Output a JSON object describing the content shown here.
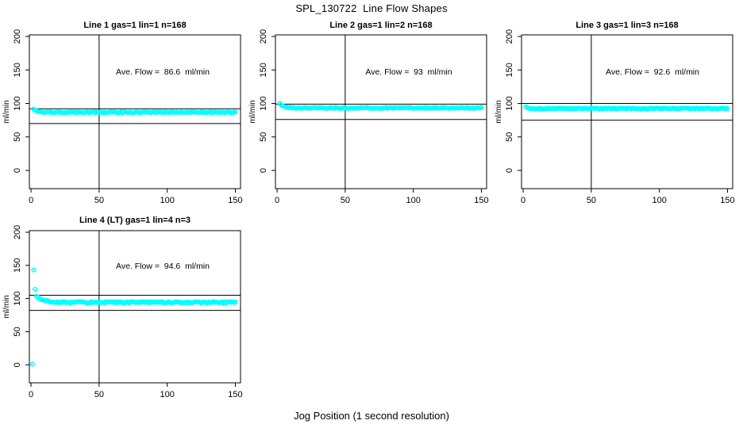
{
  "figure": {
    "title": "SPL_130722  Line Flow Shapes",
    "xlabel": "Jog Position (1 second resolution)",
    "background_color": "#ffffff",
    "axis_color": "#000000",
    "point_color": "#00ffff"
  },
  "chart_data": [
    {
      "type": "scatter",
      "title": "Line 1 gas=1 lin=1 n=168",
      "annotation": "Ave. Flow =  86.6  ml/min",
      "ave_flow_ml_min": 86.6,
      "ylabel": "ml/min",
      "xticks": [
        0,
        50,
        100,
        150
      ],
      "yticks": [
        0,
        50,
        100,
        150,
        200
      ],
      "xlim": [
        -1.2,
        153.8
      ],
      "ylim": [
        -27.2,
        202.4
      ],
      "grid": false,
      "vline_x": 50,
      "hlines": [
        92,
        70
      ],
      "series": {
        "name": "flow",
        "start_x": 2,
        "end_x": 150,
        "start_value": 91.5,
        "settle_value": 86.8,
        "decay_tau": 3,
        "noise": 0.7,
        "outliers": []
      }
    },
    {
      "type": "scatter",
      "title": "Line 2 gas=1 lin=2 n=168",
      "annotation": "Ave. Flow =  93  ml/min",
      "ave_flow_ml_min": 93,
      "ylabel": "ml/min",
      "xticks": [
        0,
        50,
        100,
        150
      ],
      "yticks": [
        0,
        50,
        100,
        150,
        200
      ],
      "xlim": [
        -1.2,
        153.8
      ],
      "ylim": [
        -27.2,
        202.4
      ],
      "grid": false,
      "vline_x": 50,
      "hlines": [
        99,
        76
      ],
      "series": {
        "name": "flow",
        "start_x": 2,
        "end_x": 150,
        "start_value": 100,
        "settle_value": 93.2,
        "decay_tau": 2.5,
        "noise": 0.7,
        "outliers": []
      }
    },
    {
      "type": "scatter",
      "title": "Line 3 gas=1 lin=3 n=168",
      "annotation": "Ave. Flow =  92.6  ml/min",
      "ave_flow_ml_min": 92.6,
      "ylabel": "ml/min",
      "xticks": [
        0,
        50,
        100,
        150
      ],
      "yticks": [
        0,
        50,
        100,
        150,
        200
      ],
      "xlim": [
        -1.2,
        153.8
      ],
      "ylim": [
        -27.2,
        202.4
      ],
      "grid": false,
      "vline_x": 50,
      "hlines": [
        100,
        75
      ],
      "series": {
        "name": "flow",
        "start_x": 2,
        "end_x": 150,
        "start_value": 95,
        "settle_value": 92.5,
        "decay_tau": 2,
        "noise": 0.7,
        "outliers": []
      }
    },
    {
      "type": "scatter",
      "title": "Line 4 (LT) gas=1 lin=4 n=3",
      "annotation": "Ave. Flow =  94.6  ml/min",
      "ave_flow_ml_min": 94.6,
      "ylabel": "ml/min",
      "xticks": [
        0,
        50,
        100,
        150
      ],
      "yticks": [
        0,
        50,
        100,
        150,
        200
      ],
      "xlim": [
        -1.2,
        153.8
      ],
      "ylim": [
        -27.2,
        202.4
      ],
      "grid": false,
      "vline_x": 50,
      "hlines": [
        105,
        82
      ],
      "series": {
        "name": "flow",
        "start_x": 4,
        "end_x": 150,
        "start_value": 104,
        "settle_value": 94.3,
        "decay_tau": 4.5,
        "noise": 1.1,
        "outliers": [
          [
            1,
            1
          ],
          [
            2,
            143
          ],
          [
            3,
            114
          ]
        ]
      }
    }
  ]
}
